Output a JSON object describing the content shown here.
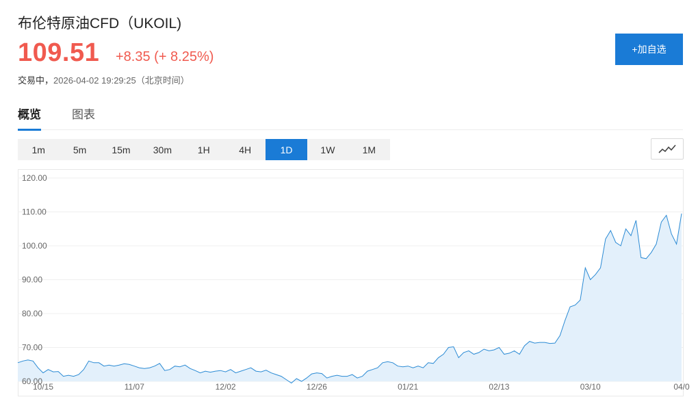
{
  "header": {
    "title": "布伦特原油CFD（UKOIL)",
    "price": "109.51",
    "change": "+8.35 (+ 8.25%)",
    "status_label": "交易中，",
    "timestamp": "2026-04-02 19:29:25（北京时间）",
    "add_button": "+加自选"
  },
  "tabs": [
    {
      "label": "概览",
      "active": true
    },
    {
      "label": "图表",
      "active": false
    }
  ],
  "periods": [
    {
      "label": "1m",
      "active": false
    },
    {
      "label": "5m",
      "active": false
    },
    {
      "label": "15m",
      "active": false
    },
    {
      "label": "30m",
      "active": false
    },
    {
      "label": "1H",
      "active": false
    },
    {
      "label": "4H",
      "active": false
    },
    {
      "label": "1D",
      "active": true
    },
    {
      "label": "1W",
      "active": false
    },
    {
      "label": "1M",
      "active": false
    }
  ],
  "chart_type_icon": "line-chart-icon",
  "colors": {
    "accent": "#1a7bd6",
    "up": "#f05a4f",
    "line": "#2a8ad4",
    "area": "#e3f0fb"
  },
  "chart_data": {
    "type": "area",
    "ylim": [
      60,
      120
    ],
    "yticks": [
      "120.00",
      "110.00",
      "100.00",
      "90.00",
      "80.00",
      "70.00",
      "60.00"
    ],
    "xtick_labels": [
      "10/15",
      "11/07",
      "12/02",
      "12/26",
      "01/21",
      "02/13",
      "03/10",
      "04/0"
    ],
    "xtick_positions": [
      5,
      23,
      41,
      59,
      77,
      95,
      113,
      131
    ],
    "values": [
      65.5,
      66,
      66.3,
      66,
      64,
      62.5,
      63.5,
      62.8,
      62.9,
      61.5,
      61.8,
      61.5,
      62,
      63.5,
      66,
      65.5,
      65.5,
      64.5,
      64.8,
      64.5,
      64.8,
      65.2,
      65,
      64.5,
      64,
      63.8,
      64,
      64.5,
      65.3,
      63.2,
      63.5,
      64.5,
      64.3,
      64.8,
      63.8,
      63.2,
      62.5,
      63,
      62.7,
      63,
      63.2,
      62.8,
      63.5,
      62.5,
      63,
      63.5,
      64,
      63,
      62.8,
      63.3,
      62.5,
      62,
      61.5,
      60.5,
      59.5,
      60.8,
      60,
      61,
      62.2,
      62.5,
      62.3,
      61,
      61.5,
      61.8,
      61.5,
      61.5,
      62,
      61,
      61.5,
      63,
      63.5,
      64,
      65.5,
      65.8,
      65.5,
      64.5,
      64.3,
      64.5,
      64,
      64.5,
      64,
      65.5,
      65.3,
      67,
      68,
      70,
      70.2,
      67,
      68.5,
      69,
      68,
      68.5,
      69.5,
      69,
      69.3,
      70,
      68,
      68.3,
      69,
      68,
      70.5,
      71.8,
      71.3,
      71.5,
      71.5,
      71.2,
      71.3,
      73.5,
      78,
      82,
      82.5,
      84,
      93.5,
      90,
      91.5,
      93.5,
      102,
      104.5,
      101,
      100,
      105,
      103,
      107.5,
      96.5,
      96.2,
      98,
      100.5,
      107,
      109,
      103.5,
      100.5,
      109.51
    ]
  }
}
